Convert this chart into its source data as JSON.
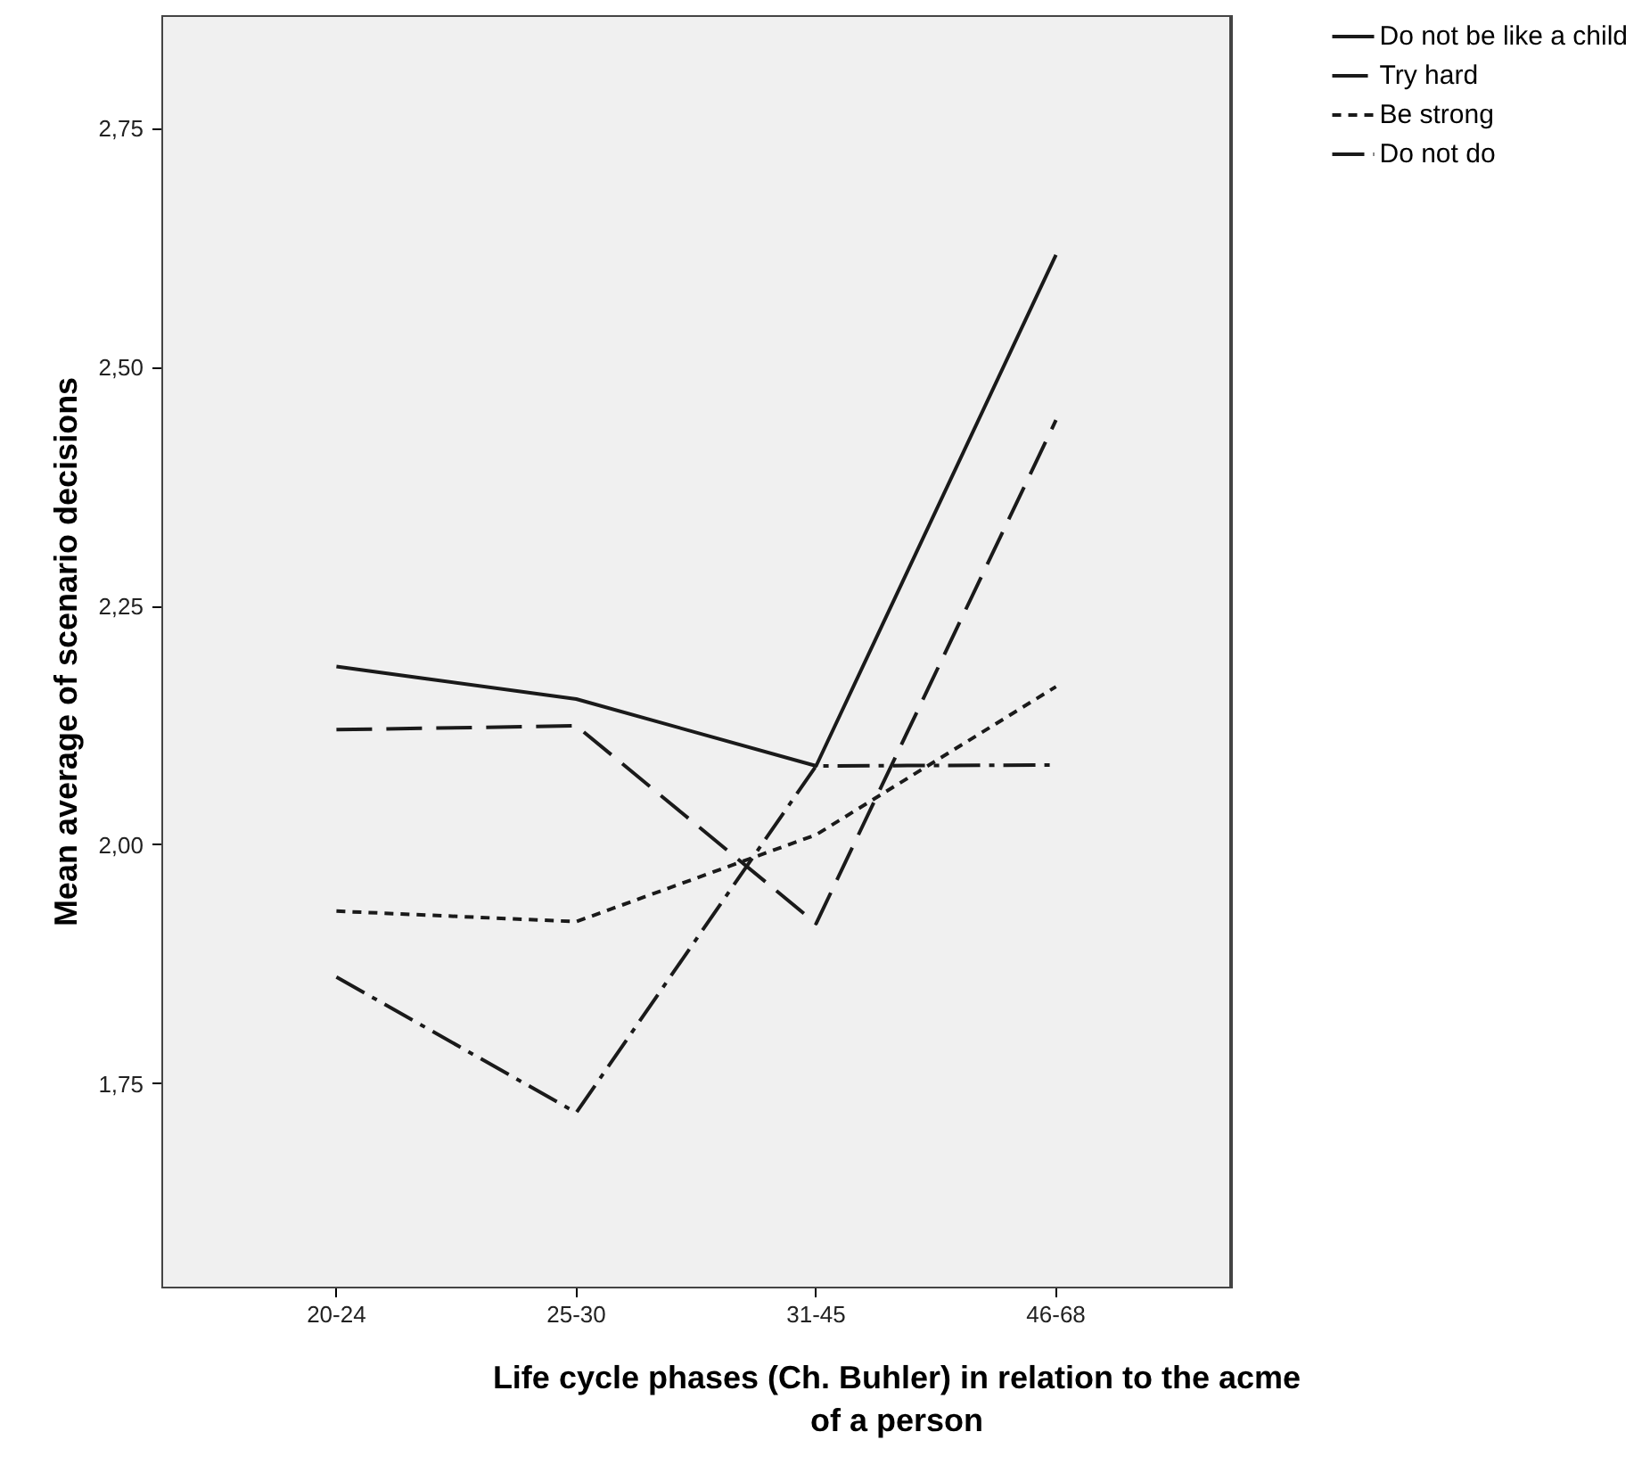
{
  "chart_data": {
    "type": "line",
    "xlabel": "Life cycle phases (Ch. Buhler) in relation to the acme of a person",
    "ylabel": "Mean average of scenario decisions",
    "categories": [
      "20-24",
      "25-30",
      "31-45",
      "46-68"
    ],
    "series": [
      {
        "name": "Do not be like a child",
        "color": "#1a1a1a",
        "line_style": "solid",
        "values": [
          2.187,
          2.153,
          2.083,
          2.618
        ]
      },
      {
        "name": "Try hard",
        "color": "#1a1a1a",
        "line_style": "dashed",
        "values": [
          2.121,
          2.125,
          1.918,
          2.445
        ]
      },
      {
        "name": "Be strong",
        "color": "#1a1a1a",
        "line_style": "dotted",
        "values": [
          1.931,
          1.92,
          2.011,
          2.166
        ]
      },
      {
        "name": "Do not do",
        "color": "#1a1a1a",
        "line_style": "dashdot",
        "values": [
          1.862,
          1.72,
          2.083,
          2.084
        ]
      }
    ],
    "ylim": [
      1.536,
      2.869
    ],
    "yticks": [
      {
        "value": 1.75,
        "label": "1,75"
      },
      {
        "value": 2.0,
        "label": "2,00"
      },
      {
        "value": 2.25,
        "label": "2,25"
      },
      {
        "value": 2.5,
        "label": "2,50"
      },
      {
        "value": 2.75,
        "label": "2,75"
      }
    ],
    "grid": false,
    "legend": "top right",
    "marker": "none"
  }
}
